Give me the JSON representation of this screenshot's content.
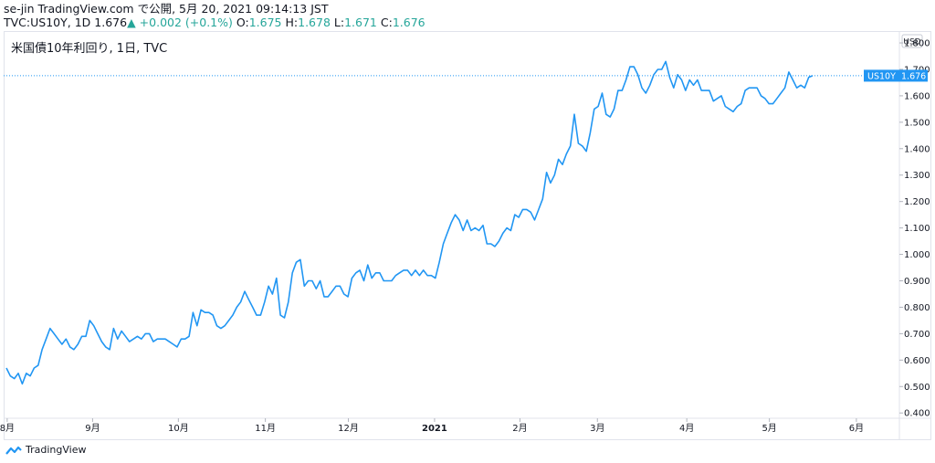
{
  "header": {
    "line1": "se-jin TradingView.com で公開, 5月 20, 2021 09:14:13 JST",
    "symbol": "TVC:US10Y, 1D",
    "last": "1.676",
    "arrow": "▲",
    "change": "+0.002 (+0.1%)",
    "o_label": "O:",
    "o_val": "1.675",
    "h_label": "H:",
    "h_val": "1.678",
    "l_label": "L:",
    "l_val": "1.671",
    "c_label": "C:",
    "c_val": "1.676"
  },
  "footer": {
    "brand": "TradingView"
  },
  "chart_data": {
    "type": "line",
    "title": "米国債10年利回り, 1日, TVC",
    "currency_label": "USD",
    "last_label": "US10Y",
    "last_value": "1.676",
    "ylim": [
      0.38,
      1.845
    ],
    "y_ticks": [
      0.4,
      0.5,
      0.6,
      0.7,
      0.8,
      0.9,
      1.0,
      1.1,
      1.2,
      1.3,
      1.4,
      1.5,
      1.6,
      1.7,
      1.8
    ],
    "y_tick_labels": [
      "0.400",
      "0.500",
      "0.600",
      "0.700",
      "0.800",
      "0.900",
      "1.000",
      "1.100",
      "1.200",
      "1.300",
      "1.400",
      "1.500",
      "1.600",
      "1.700",
      "1.800"
    ],
    "x_ticks": [
      {
        "label": "8月",
        "t": 0.2,
        "bold": false
      },
      {
        "label": "9月",
        "t": 21.7,
        "bold": false
      },
      {
        "label": "10月",
        "t": 43.3,
        "bold": false
      },
      {
        "label": "11月",
        "t": 65.2,
        "bold": false
      },
      {
        "label": "12月",
        "t": 86.1,
        "bold": false
      },
      {
        "label": "2021",
        "t": 107.8,
        "bold": true
      },
      {
        "label": "2月",
        "t": 129.3,
        "bold": false
      },
      {
        "label": "3月",
        "t": 148.8,
        "bold": false
      },
      {
        "label": "4月",
        "t": 171.3,
        "bold": false
      },
      {
        "label": "5月",
        "t": 192.1,
        "bold": false
      },
      {
        "label": "6月",
        "t": 214.0,
        "bold": false
      }
    ],
    "series": [
      {
        "color": "#2196f3",
        "values": [
          0.57,
          0.54,
          0.53,
          0.55,
          0.51,
          0.55,
          0.54,
          0.57,
          0.58,
          0.64,
          0.68,
          0.72,
          0.7,
          0.68,
          0.66,
          0.68,
          0.65,
          0.64,
          0.66,
          0.69,
          0.69,
          0.75,
          0.73,
          0.7,
          0.67,
          0.65,
          0.64,
          0.72,
          0.68,
          0.71,
          0.69,
          0.67,
          0.68,
          0.69,
          0.68,
          0.7,
          0.7,
          0.67,
          0.68,
          0.68,
          0.68,
          0.67,
          0.66,
          0.65,
          0.68,
          0.68,
          0.69,
          0.78,
          0.73,
          0.79,
          0.78,
          0.78,
          0.77,
          0.73,
          0.72,
          0.73,
          0.75,
          0.77,
          0.8,
          0.82,
          0.86,
          0.83,
          0.8,
          0.77,
          0.77,
          0.82,
          0.88,
          0.85,
          0.91,
          0.77,
          0.76,
          0.82,
          0.93,
          0.97,
          0.98,
          0.88,
          0.9,
          0.9,
          0.87,
          0.9,
          0.84,
          0.84,
          0.86,
          0.88,
          0.88,
          0.85,
          0.84,
          0.91,
          0.93,
          0.94,
          0.9,
          0.96,
          0.91,
          0.93,
          0.93,
          0.9,
          0.9,
          0.9,
          0.92,
          0.93,
          0.94,
          0.94,
          0.92,
          0.94,
          0.92,
          0.94,
          0.92,
          0.92,
          0.91,
          0.97,
          1.04,
          1.08,
          1.12,
          1.15,
          1.13,
          1.09,
          1.13,
          1.09,
          1.1,
          1.09,
          1.11,
          1.04,
          1.04,
          1.03,
          1.05,
          1.08,
          1.1,
          1.09,
          1.15,
          1.14,
          1.17,
          1.17,
          1.16,
          1.13,
          1.17,
          1.21,
          1.31,
          1.27,
          1.3,
          1.36,
          1.34,
          1.38,
          1.41,
          1.53,
          1.42,
          1.41,
          1.39,
          1.46,
          1.55,
          1.56,
          1.61,
          1.53,
          1.52,
          1.55,
          1.62,
          1.62,
          1.66,
          1.71,
          1.71,
          1.68,
          1.63,
          1.61,
          1.64,
          1.68,
          1.7,
          1.7,
          1.73,
          1.67,
          1.63,
          1.68,
          1.66,
          1.62,
          1.66,
          1.64,
          1.66,
          1.62,
          1.62,
          1.62,
          1.58,
          1.59,
          1.6,
          1.56,
          1.55,
          1.54,
          1.56,
          1.57,
          1.62,
          1.63,
          1.63,
          1.63,
          1.6,
          1.59,
          1.57,
          1.57,
          1.59,
          1.61,
          1.63,
          1.69,
          1.66,
          1.63,
          1.64,
          1.63,
          1.67,
          1.676
        ]
      }
    ]
  }
}
